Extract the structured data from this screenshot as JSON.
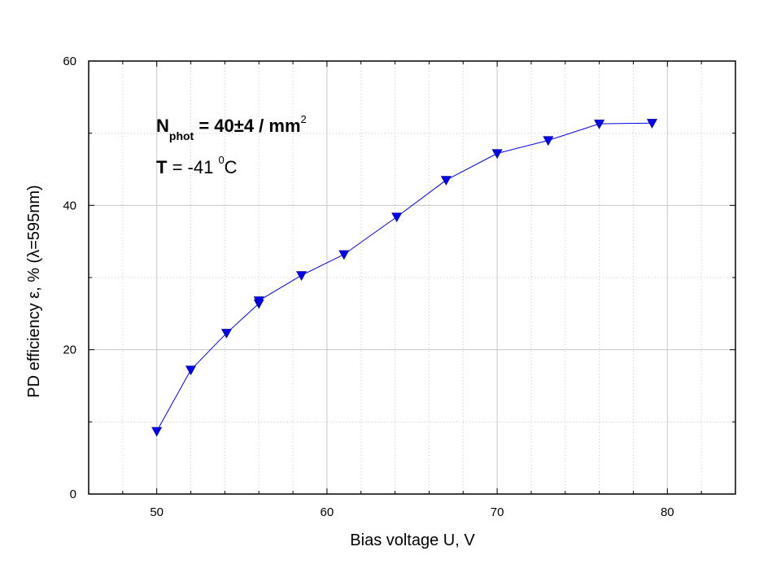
{
  "chart_data": {
    "type": "line",
    "title": "",
    "xlabel": "Bias voltage U, V",
    "ylabel": "PD efficiency ε, % (λ=595nm)",
    "xlim": [
      46,
      84
    ],
    "ylim": [
      0,
      60
    ],
    "xticks": [
      50,
      60,
      70,
      80
    ],
    "yticks": [
      0,
      20,
      40,
      60
    ],
    "xtick_labels": [
      "50",
      "60",
      "70",
      "80"
    ],
    "ytick_labels": [
      "0",
      "20",
      "40",
      "60"
    ],
    "grid": true,
    "legend": "none",
    "series": [
      {
        "marker": "triangle-down",
        "color": "#0000ee",
        "x": [
          50.0,
          52.0,
          54.1,
          56.0,
          56.0,
          58.5,
          61.0,
          64.1,
          67.0,
          70.0,
          73.0,
          76.0,
          79.1
        ],
        "y": [
          8.7,
          17.2,
          22.3,
          26.4,
          26.8,
          30.3,
          33.2,
          38.4,
          43.5,
          47.2,
          49.0,
          51.3,
          51.4
        ]
      }
    ],
    "annotations": {
      "nphot": {
        "n": "N",
        "sub": "phot",
        "text": " = 40±4 / mm",
        "sup": "2"
      },
      "temp": {
        "t": "T",
        "text": " = -41 ",
        "sup": "0",
        "unit": "C"
      }
    }
  }
}
